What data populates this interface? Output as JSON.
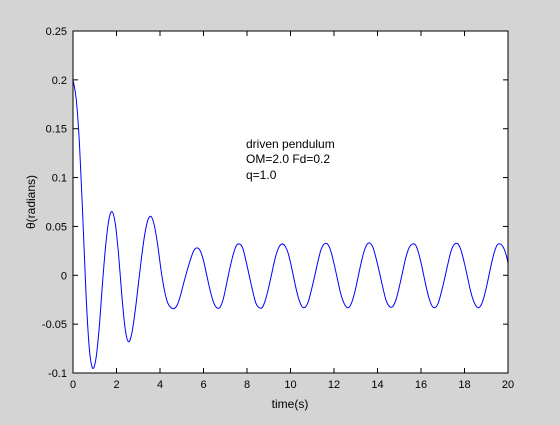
{
  "colors": {
    "figure_background": "#d4d4d4",
    "axes_background": "#ffffff",
    "axes_color": "#000000",
    "series_color": "#0000ff"
  },
  "chart_data": {
    "type": "line",
    "title": "",
    "xlabel": "time(s)",
    "ylabel": "θ(radians)",
    "xlim": [
      0,
      20
    ],
    "ylim": [
      -0.1,
      0.25
    ],
    "xticks": [
      "0",
      "2",
      "4",
      "6",
      "8",
      "10",
      "12",
      "14",
      "16",
      "18",
      "20"
    ],
    "yticks": [
      "-0.1",
      "-0.05",
      "0",
      "0.05",
      "0.1",
      "0.15",
      "0.2",
      "0.25"
    ],
    "grid": false,
    "annotation": [
      "driven pendulum",
      "OM=2.0 Fd=0.2",
      "q=1.0"
    ],
    "series": [
      {
        "x": [
          0,
          0.15,
          0.3,
          0.45,
          0.6,
          0.75,
          0.9,
          1.05,
          1.2,
          1.35,
          1.5,
          1.65,
          1.8,
          1.95,
          2.1,
          2.25,
          2.4,
          2.55,
          2.7,
          2.85,
          3.0,
          3.15,
          3.3,
          3.45,
          3.6,
          3.75,
          3.9,
          4.05,
          4.2,
          4.35,
          4.5,
          4.65,
          4.8,
          4.95,
          5.1,
          5.25,
          5.4,
          5.55,
          5.7,
          5.85,
          6.0,
          6.15,
          6.3,
          6.45,
          6.6,
          6.75,
          6.9,
          7.05,
          7.2,
          7.35,
          7.5,
          7.65,
          7.8,
          7.95,
          8.1,
          8.25,
          8.4,
          8.55,
          8.7,
          8.85,
          9.0,
          9.15,
          9.3,
          9.45,
          9.6,
          9.75,
          9.9,
          10.05,
          10.2,
          10.35,
          10.5,
          10.65,
          10.8,
          10.95,
          11.1,
          11.25,
          11.4,
          11.55,
          11.7,
          11.85,
          12.0,
          12.15,
          12.3,
          12.45,
          12.6,
          12.75,
          12.9,
          13.05,
          13.2,
          13.35,
          13.5,
          13.65,
          13.8,
          13.95,
          14.1,
          14.25,
          14.4,
          14.55,
          14.7,
          14.85,
          15.0,
          15.15,
          15.3,
          15.45,
          15.6,
          15.75,
          15.9,
          16.05,
          16.2,
          16.35,
          16.5,
          16.65,
          16.8,
          16.95,
          17.1,
          17.25,
          17.4,
          17.55,
          17.7,
          17.85,
          18.0,
          18.15,
          18.3,
          18.45,
          18.6,
          18.75,
          18.9,
          19.05,
          19.2,
          19.35,
          19.5,
          19.65,
          19.8,
          19.95,
          20.0
        ],
        "y": [
          0.2,
          0.18,
          0.133,
          0.06,
          -0.02,
          -0.075,
          -0.095,
          -0.086,
          -0.055,
          -0.01,
          0.03,
          0.057,
          0.065,
          0.052,
          0.02,
          -0.022,
          -0.055,
          -0.068,
          -0.06,
          -0.038,
          -0.01,
          0.018,
          0.042,
          0.057,
          0.06,
          0.05,
          0.03,
          0.005,
          -0.015,
          -0.028,
          -0.033,
          -0.034,
          -0.03,
          -0.02,
          -0.007,
          0.005,
          0.016,
          0.025,
          0.028,
          0.025,
          0.015,
          0.0,
          -0.015,
          -0.027,
          -0.033,
          -0.033,
          -0.025,
          -0.01,
          0.006,
          0.02,
          0.03,
          0.032,
          0.028,
          0.015,
          0.0,
          -0.015,
          -0.028,
          -0.033,
          -0.033,
          -0.025,
          -0.012,
          0.003,
          0.018,
          0.028,
          0.032,
          0.03,
          0.022,
          0.008,
          -0.008,
          -0.022,
          -0.031,
          -0.033,
          -0.028,
          -0.016,
          -0.002,
          0.013,
          0.026,
          0.032,
          0.032,
          0.025,
          0.012,
          -0.003,
          -0.018,
          -0.028,
          -0.033,
          -0.031,
          -0.022,
          -0.008,
          0.008,
          0.022,
          0.031,
          0.033,
          0.028,
          0.016,
          0.002,
          -0.013,
          -0.026,
          -0.032,
          -0.032,
          -0.025,
          -0.012,
          0.003,
          0.018,
          0.028,
          0.032,
          0.031,
          0.022,
          0.008,
          -0.008,
          -0.022,
          -0.031,
          -0.033,
          -0.028,
          -0.016,
          -0.002,
          0.013,
          0.026,
          0.032,
          0.032,
          0.025,
          0.012,
          -0.003,
          -0.018,
          -0.028,
          -0.033,
          -0.031,
          -0.022,
          -0.008,
          0.008,
          0.022,
          0.031,
          0.032,
          0.028,
          0.018,
          0.012
        ]
      }
    ]
  }
}
